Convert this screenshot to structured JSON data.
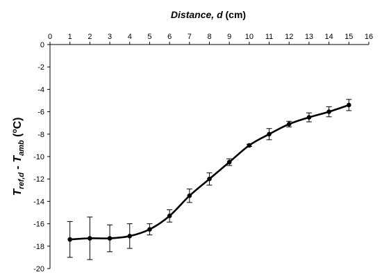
{
  "chart_data": {
    "type": "line",
    "x_axis_position": "top",
    "xlabel": {
      "italic_part": "Distance, ",
      "var": "d",
      "unit": " (cm)"
    },
    "ylabel": {
      "t1": "T",
      "sub1": "ref,d",
      "mid": " - ",
      "t2": "T",
      "sub2": "amb",
      "unit_open": " (",
      "unit_deg": "o",
      "unit_close": "C)"
    },
    "xlim": [
      0,
      16
    ],
    "ylim": [
      -20,
      0
    ],
    "x_ticks": [
      "0",
      "1",
      "2",
      "3",
      "4",
      "5",
      "6",
      "7",
      "8",
      "9",
      "10",
      "11",
      "12",
      "13",
      "14",
      "15",
      "16"
    ],
    "y_ticks": [
      "0",
      "-2",
      "-4",
      "-6",
      "-8",
      "-10",
      "-12",
      "-14",
      "-16",
      "-18",
      "-20"
    ],
    "grid": false,
    "line_color": "#000000",
    "series": [
      {
        "x": [
          1,
          2,
          3,
          4,
          5,
          6,
          7,
          8,
          9,
          10,
          11,
          12,
          13,
          14,
          15
        ],
        "y": [
          -17.4,
          -17.3,
          -17.3,
          -17.1,
          -16.5,
          -15.3,
          -13.5,
          -12.0,
          -10.5,
          -9.0,
          -8.0,
          -7.1,
          -6.5,
          -6.0,
          -5.4
        ],
        "err": [
          1.6,
          1.9,
          1.2,
          1.1,
          0.5,
          0.55,
          0.6,
          0.55,
          0.3,
          0.1,
          0.5,
          0.25,
          0.4,
          0.45,
          0.5
        ]
      }
    ]
  }
}
